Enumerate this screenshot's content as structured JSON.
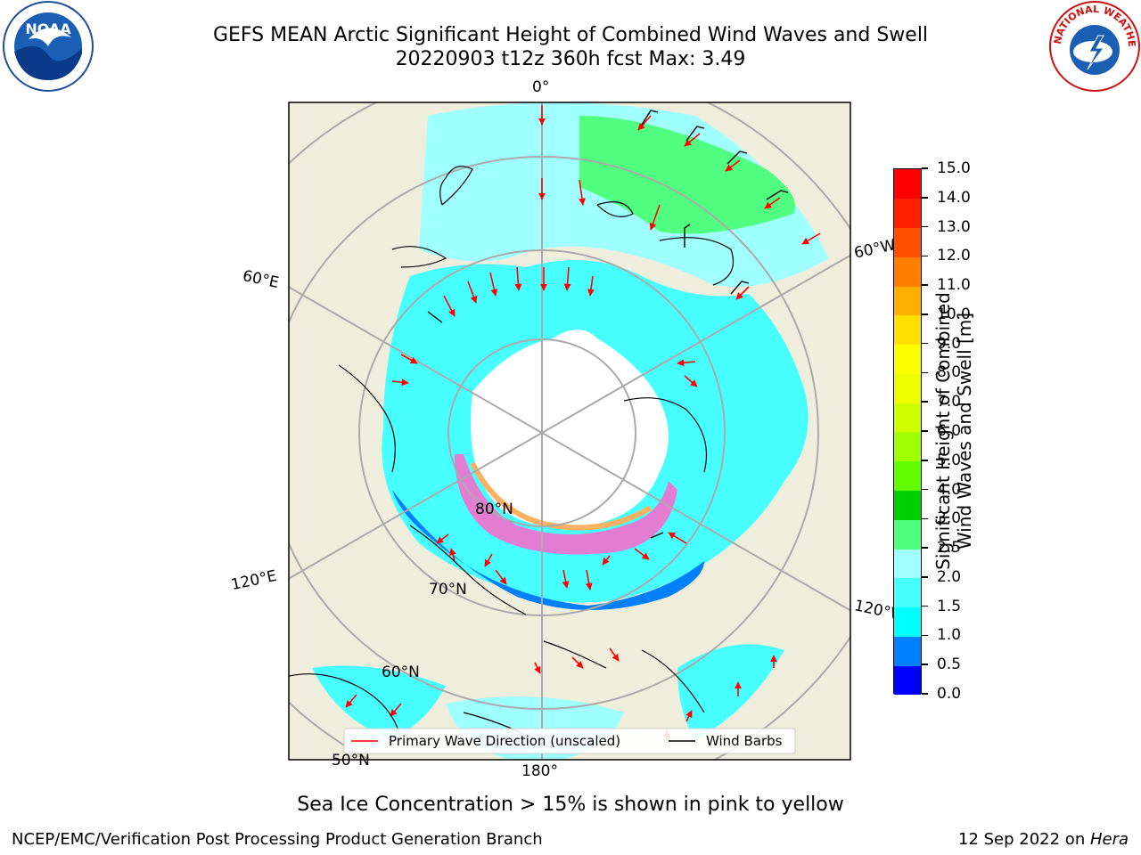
{
  "header": {
    "title_line1": "GEFS MEAN Arctic Significant Height of Combined Wind Waves and Swell",
    "title_line2": "20220903 t12z 360h fcst   Max: 3.49"
  },
  "logos": {
    "left": {
      "name": "NOAA",
      "text": "NOAA"
    },
    "right": {
      "name": "National Weather Service",
      "text": "NATIONAL WEATHER SERVICE"
    }
  },
  "map": {
    "labels": {
      "top": "0°",
      "bottom": "180°",
      "left_upper": "60°E",
      "left_lower": "120°E",
      "right_upper": "60°W",
      "right_lower": "120°W",
      "lat80": "80°N",
      "lat70": "70°N",
      "lat60": "60°N",
      "lat50": "50°N"
    },
    "legend": {
      "wave": "Primary Wave Direction (unscaled)",
      "barbs": "Wind Barbs"
    },
    "colors": {
      "land": "#efeedc",
      "ice": "#ffffff",
      "grid": "#aaaaaa",
      "arrow": "#ff0000",
      "barb": "#000000"
    }
  },
  "colorbar": {
    "label_line1": "Significant Height of Combined",
    "label_line2": "Wind Waves and Swell [m]",
    "ticks": [
      "0.0",
      "0.5",
      "1.0",
      "1.5",
      "2.0",
      "2.5",
      "3.0",
      "4.0",
      "5.0",
      "6.0",
      "7.0",
      "8.0",
      "9.0",
      "10.0",
      "11.0",
      "12.0",
      "13.0",
      "14.0",
      "15.0"
    ],
    "colors": [
      "#0000ff",
      "#0080ff",
      "#00ffff",
      "#48ffff",
      "#a0ffff",
      "#50ff80",
      "#00d000",
      "#60ff00",
      "#a0ff00",
      "#d0ff00",
      "#f0ff00",
      "#ffff00",
      "#ffe000",
      "#ffb000",
      "#ff8000",
      "#ff5000",
      "#ff2000",
      "#ff0000"
    ]
  },
  "footer": {
    "note": "Sea Ice Concentration > 15% is shown in pink to yellow",
    "left": "NCEP/EMC/Verification Post Processing Product Generation Branch",
    "right_date": "12 Sep 2022 on ",
    "right_machine": "Hera"
  }
}
